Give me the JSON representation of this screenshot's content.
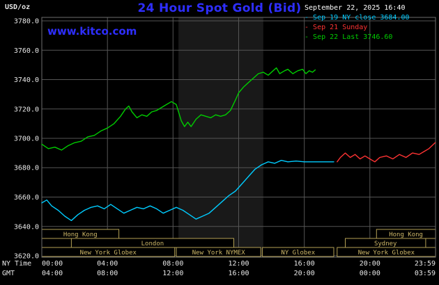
{
  "header": {
    "unit_label": "USD/oz",
    "title": "24 Hour Spot Gold (Bid)",
    "datetime": "September 22, 2025 16:40",
    "legend": [
      {
        "label": "Sep 19 NY close 3684.00",
        "color": "#00ccff"
      },
      {
        "label": "Sep 21 Sunday",
        "color": "#ff3333"
      },
      {
        "label": "Sep 22 Last 3746.60",
        "color": "#00cc00"
      }
    ]
  },
  "watermark": {
    "text": "www.kitco.com"
  },
  "colors": {
    "background": "#000000",
    "title_blue": "#2e2eff",
    "grid": "#555555",
    "plot_border": "#6e6e6e",
    "axis_text": "#e8e8e8",
    "session_border": "#b3a055",
    "session_text": "#cdb768",
    "nymex_band": "#191919",
    "sep19_cyan": "#00ccff",
    "sep21_red": "#ff3333",
    "sep22_green": "#00cc00"
  },
  "chart_data": {
    "type": "line",
    "title": "24 Hour Spot Gold (Bid)",
    "ylabel": "USD/oz",
    "ylim": [
      3620,
      3780
    ],
    "yticks": [
      3620,
      3640,
      3660,
      3680,
      3700,
      3720,
      3740,
      3760,
      3780
    ],
    "grid_hours": [
      4,
      8,
      12,
      16,
      20
    ],
    "x_label_hours": [
      0,
      4,
      8,
      12,
      16,
      20,
      24
    ],
    "x_axis_rows": [
      {
        "name": "NY Time",
        "labels": [
          "00:00",
          "04:00",
          "08:00",
          "12:00",
          "16:00",
          "20:00",
          "23:59"
        ]
      },
      {
        "name": "GMT",
        "labels": [
          "04:00",
          "08:00",
          "12:00",
          "16:00",
          "20:00",
          "00:00",
          "03:59"
        ]
      }
    ],
    "nymex_band": {
      "start": 8.33,
      "end": 13.5
    },
    "series": [
      {
        "id": "sep19-ny-close",
        "name": "Sep 19 NY close 3684.00",
        "color": "#00ccff",
        "points": [
          [
            0,
            3656
          ],
          [
            0.3,
            3658
          ],
          [
            0.6,
            3654
          ],
          [
            1,
            3651
          ],
          [
            1.4,
            3647
          ],
          [
            1.8,
            3644
          ],
          [
            2.2,
            3648
          ],
          [
            2.6,
            3651
          ],
          [
            3,
            3653
          ],
          [
            3.4,
            3654
          ],
          [
            3.8,
            3652
          ],
          [
            4.2,
            3655
          ],
          [
            4.6,
            3652
          ],
          [
            5,
            3649
          ],
          [
            5.4,
            3651
          ],
          [
            5.8,
            3653
          ],
          [
            6.2,
            3652
          ],
          [
            6.6,
            3654
          ],
          [
            7,
            3652
          ],
          [
            7.4,
            3649
          ],
          [
            7.8,
            3651
          ],
          [
            8.2,
            3653
          ],
          [
            8.6,
            3651
          ],
          [
            9,
            3648
          ],
          [
            9.4,
            3645
          ],
          [
            9.8,
            3647
          ],
          [
            10.2,
            3649
          ],
          [
            10.6,
            3653
          ],
          [
            11,
            3657
          ],
          [
            11.4,
            3661
          ],
          [
            11.8,
            3664
          ],
          [
            12.2,
            3669
          ],
          [
            12.6,
            3674
          ],
          [
            13,
            3679
          ],
          [
            13.4,
            3682
          ],
          [
            13.8,
            3684
          ],
          [
            14.2,
            3683
          ],
          [
            14.6,
            3685
          ],
          [
            15,
            3684
          ],
          [
            15.5,
            3684.5
          ],
          [
            16,
            3684
          ],
          [
            16.4,
            3684
          ],
          [
            17.8,
            3684
          ]
        ]
      },
      {
        "id": "sep21-sunday",
        "name": "Sep 21 Sunday",
        "color": "#ff3333",
        "points": [
          [
            18,
            3684
          ],
          [
            18.2,
            3687
          ],
          [
            18.5,
            3690
          ],
          [
            18.8,
            3687
          ],
          [
            19.1,
            3689
          ],
          [
            19.4,
            3686
          ],
          [
            19.7,
            3688
          ],
          [
            20,
            3686
          ],
          [
            20.3,
            3684
          ],
          [
            20.6,
            3687
          ],
          [
            21,
            3688
          ],
          [
            21.4,
            3686
          ],
          [
            21.8,
            3689
          ],
          [
            22.2,
            3687
          ],
          [
            22.6,
            3690
          ],
          [
            23,
            3689
          ],
          [
            23.3,
            3691
          ],
          [
            23.6,
            3693
          ],
          [
            23.98,
            3697
          ]
        ]
      },
      {
        "id": "sep22-last",
        "name": "Sep 22 Last 3746.60",
        "color": "#00cc00",
        "points": [
          [
            0,
            3696
          ],
          [
            0.4,
            3693
          ],
          [
            0.8,
            3694
          ],
          [
            1.2,
            3692
          ],
          [
            1.6,
            3695
          ],
          [
            2,
            3697
          ],
          [
            2.4,
            3698
          ],
          [
            2.8,
            3701
          ],
          [
            3.2,
            3702
          ],
          [
            3.6,
            3705
          ],
          [
            4,
            3707
          ],
          [
            4.4,
            3710
          ],
          [
            4.8,
            3715
          ],
          [
            5.1,
            3720
          ],
          [
            5.3,
            3722
          ],
          [
            5.5,
            3718
          ],
          [
            5.8,
            3714
          ],
          [
            6.1,
            3716
          ],
          [
            6.4,
            3715
          ],
          [
            6.7,
            3718
          ],
          [
            7,
            3719
          ],
          [
            7.3,
            3721
          ],
          [
            7.6,
            3723
          ],
          [
            7.9,
            3725
          ],
          [
            8.2,
            3723
          ],
          [
            8.5,
            3712
          ],
          [
            8.7,
            3708
          ],
          [
            8.9,
            3711
          ],
          [
            9.1,
            3708
          ],
          [
            9.4,
            3713
          ],
          [
            9.7,
            3716
          ],
          [
            10,
            3715
          ],
          [
            10.3,
            3714
          ],
          [
            10.6,
            3716
          ],
          [
            10.9,
            3715
          ],
          [
            11.2,
            3716
          ],
          [
            11.5,
            3719
          ],
          [
            11.8,
            3726
          ],
          [
            12,
            3731
          ],
          [
            12.3,
            3735
          ],
          [
            12.6,
            3738
          ],
          [
            12.9,
            3741
          ],
          [
            13.2,
            3744
          ],
          [
            13.5,
            3745
          ],
          [
            13.8,
            3743
          ],
          [
            14.1,
            3746
          ],
          [
            14.3,
            3748
          ],
          [
            14.5,
            3744
          ],
          [
            14.8,
            3746
          ],
          [
            15,
            3747
          ],
          [
            15.3,
            3744
          ],
          [
            15.6,
            3746
          ],
          [
            15.9,
            3747
          ],
          [
            16.1,
            3744
          ],
          [
            16.3,
            3746
          ],
          [
            16.5,
            3745
          ],
          [
            16.67,
            3746.6
          ]
        ]
      }
    ],
    "sessions": [
      {
        "row": 0,
        "label": "Hong Kong",
        "start": 0,
        "end": 4.7
      },
      {
        "row": 0,
        "label": "Hong Kong",
        "start": 20.4,
        "end": 24
      },
      {
        "row": 1,
        "label": "London",
        "start": 1.8,
        "end": 11.7
      },
      {
        "row": 1,
        "label": "Sydney",
        "start": 18.5,
        "end": 23.4
      },
      {
        "row": 2,
        "label": "New York Globex",
        "start": 0,
        "end": 8.1
      },
      {
        "row": 2,
        "label": "New York NYMEX",
        "start": 8.2,
        "end": 13.35
      },
      {
        "row": 2,
        "label": "NY Globex",
        "start": 13.45,
        "end": 17.8
      },
      {
        "row": 2,
        "label": "New York Globex",
        "start": 18,
        "end": 24
      }
    ]
  }
}
